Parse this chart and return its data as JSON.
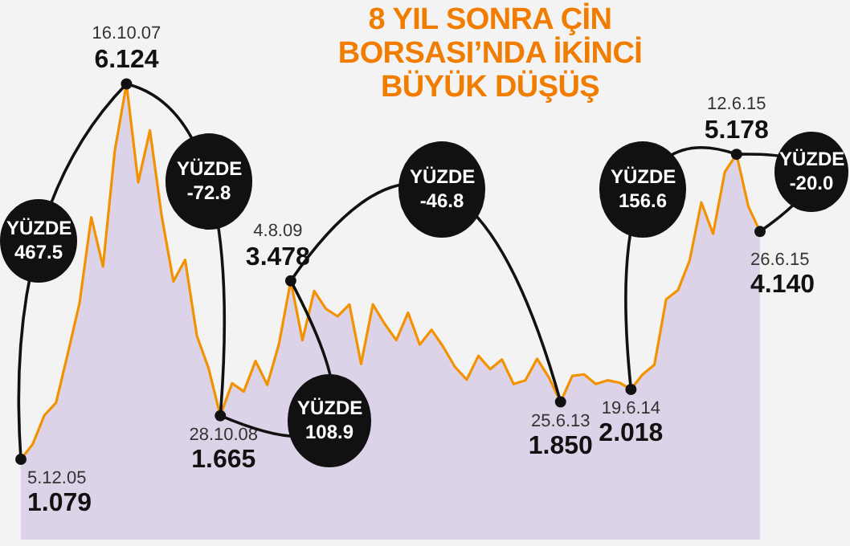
{
  "chart_data": {
    "type": "area",
    "title": "8 YIL SONRA ÇİN BORSASI’NDA İKİNCİ BÜYÜK DÜŞÜŞ",
    "categories": [
      null,
      null,
      null,
      null,
      null,
      null,
      null,
      null,
      null,
      null,
      null,
      null,
      null,
      null,
      null,
      null,
      null,
      null,
      null,
      null,
      null,
      null,
      null,
      null,
      null,
      null,
      null,
      null,
      null,
      null,
      null,
      null,
      null,
      null,
      null,
      null,
      null,
      null,
      null,
      null,
      null,
      null,
      null,
      null,
      null,
      null,
      null,
      null,
      null,
      null,
      null,
      null,
      null,
      null,
      null,
      null,
      null,
      null,
      null,
      null,
      null,
      null,
      null,
      null
    ],
    "series": [
      {
        "color": "#f39200",
        "values": [
          1.079,
          1.28,
          1.67,
          1.84,
          2.5,
          3.18,
          4.33,
          3.67,
          5.22,
          6.124,
          4.8,
          5.5,
          4.35,
          3.47,
          3.76,
          2.74,
          2.3,
          1.665,
          2.1,
          1.99,
          2.4,
          2.08,
          2.63,
          3.478,
          2.68,
          3.34,
          3.1,
          3.0,
          3.16,
          2.36,
          3.16,
          2.9,
          2.68,
          3.05,
          2.62,
          2.82,
          2.59,
          2.32,
          2.15,
          2.47,
          2.29,
          2.42,
          2.09,
          2.14,
          2.43,
          2.18,
          1.85,
          2.2,
          2.22,
          2.09,
          2.14,
          2.11,
          2.018,
          2.22,
          2.35,
          3.23,
          3.35,
          3.75,
          4.53,
          4.11,
          4.94,
          5.178,
          4.48,
          4.14
        ],
        "value_labels": [
          "1.079",
          null,
          null,
          null,
          null,
          null,
          null,
          null,
          null,
          "6.124",
          null,
          null,
          null,
          null,
          null,
          null,
          null,
          "1.665",
          null,
          null,
          null,
          null,
          null,
          "3.478",
          null,
          null,
          null,
          null,
          null,
          null,
          null,
          null,
          null,
          null,
          null,
          null,
          null,
          null,
          null,
          null,
          null,
          null,
          null,
          null,
          null,
          null,
          "1.850",
          null,
          null,
          null,
          null,
          null,
          "2.018",
          null,
          null,
          null,
          null,
          null,
          null,
          null,
          null,
          "5.178",
          null,
          "4.140"
        ]
      }
    ],
    "annotations": [
      "5.12.05",
      "16.10.07",
      "28.10.08",
      "4.8.09",
      "25.6.13",
      "19.6.14",
      "12.6.15",
      "26.6.15",
      "YÜZDE 467.5",
      "YÜZDE -72.8",
      "YÜZDE 108.9",
      "YÜZDE -46.8",
      "YÜZDE 156.6",
      "YÜZDE -20.0"
    ],
    "tick_labels": false
  }
}
